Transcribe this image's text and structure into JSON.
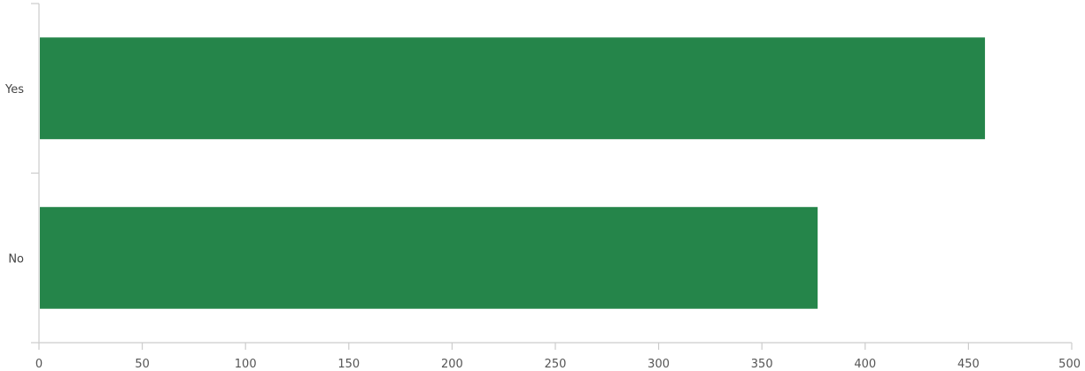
{
  "chart_data": {
    "type": "bar",
    "orientation": "horizontal",
    "categories": [
      "Yes",
      "No"
    ],
    "values": [
      458,
      377
    ],
    "xlim": [
      0,
      500
    ],
    "xticks": [
      0,
      50,
      100,
      150,
      200,
      250,
      300,
      350,
      400,
      450,
      500
    ],
    "title": "",
    "xlabel": "",
    "ylabel": "",
    "grid": false,
    "legend": "none",
    "bar_color": "#25854a",
    "axis_color": "#cccccc"
  }
}
